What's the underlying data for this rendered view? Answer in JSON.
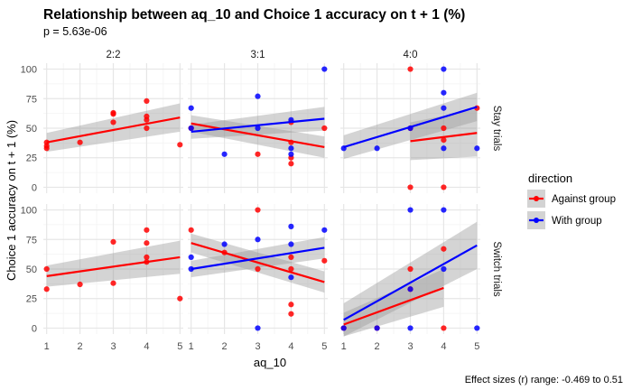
{
  "chart_data": {
    "type": "scatter",
    "title": "Relationship between aq_10 and Choice 1 accuracy on t + 1 (%)",
    "subtitle": "p = 5.63e-06",
    "caption": "Effect sizes (r) range: -0.469 to 0.51",
    "xlabel": "aq_10",
    "ylabel": "Choice 1 accuracy on t + 1 (%)",
    "xlim": [
      0.9,
      5.1
    ],
    "ylim": [
      -5,
      105
    ],
    "x_ticks": [
      "1",
      "2",
      "3",
      "4",
      "5"
    ],
    "y_ticks": [
      "0",
      "25",
      "50",
      "75",
      "100"
    ],
    "grid": true,
    "legend": {
      "title": "direction",
      "position": "right",
      "entries": [
        {
          "label": "Against group",
          "color": "#ff0000"
        },
        {
          "label": "With group",
          "color": "#0000ff"
        }
      ]
    },
    "columns": [
      "2:2",
      "3:1",
      "4:0"
    ],
    "rows": [
      "Stay trials",
      "Switch trials"
    ],
    "panels": [
      {
        "col": 0,
        "row": 0,
        "series": [
          {
            "name": "Against group",
            "color": "#ff0000",
            "points": [
              [
                1,
                33
              ],
              [
                1,
                35
              ],
              [
                1,
                38
              ],
              [
                2,
                38
              ],
              [
                3,
                55
              ],
              [
                3,
                62
              ],
              [
                3,
                63
              ],
              [
                4,
                50
              ],
              [
                4,
                57
              ],
              [
                4,
                60
              ],
              [
                4,
                73
              ],
              [
                5,
                36
              ]
            ],
            "fit": [
              [
                1,
                38
              ],
              [
                5,
                59
              ]
            ],
            "band": [
              8,
              12
            ]
          }
        ]
      },
      {
        "col": 1,
        "row": 0,
        "series": [
          {
            "name": "Against group",
            "color": "#ff0000",
            "points": [
              [
                1,
                50
              ],
              [
                3,
                28
              ],
              [
                4,
                20
              ],
              [
                4,
                25
              ],
              [
                4,
                38
              ],
              [
                4,
                55
              ],
              [
                5,
                50
              ]
            ],
            "fit": [
              [
                1,
                54
              ],
              [
                5,
                34
              ]
            ],
            "band": [
              7,
              9
            ]
          },
          {
            "name": "With group",
            "color": "#0000ff",
            "points": [
              [
                1,
                67
              ],
              [
                1,
                50
              ],
              [
                2,
                28
              ],
              [
                3,
                77
              ],
              [
                3,
                50
              ],
              [
                4,
                28
              ],
              [
                4,
                57
              ],
              [
                4,
                33
              ],
              [
                5,
                100
              ]
            ],
            "fit": [
              [
                1,
                47
              ],
              [
                5,
                58
              ]
            ],
            "band": [
              6,
              10
            ]
          }
        ]
      },
      {
        "col": 2,
        "row": 0,
        "series": [
          {
            "name": "Against group",
            "color": "#ff0000",
            "points": [
              [
                3,
                100
              ],
              [
                3,
                50
              ],
              [
                3,
                0
              ],
              [
                4,
                0
              ],
              [
                4,
                50
              ],
              [
                4,
                40
              ],
              [
                5,
                67
              ]
            ],
            "fit": [
              [
                3,
                39
              ],
              [
                5,
                46
              ]
            ],
            "band": [
              16,
              20
            ]
          },
          {
            "name": "With group",
            "color": "#0000ff",
            "points": [
              [
                1,
                33
              ],
              [
                2,
                33
              ],
              [
                3,
                50
              ],
              [
                4,
                100
              ],
              [
                4,
                80
              ],
              [
                4,
                67
              ],
              [
                4,
                33
              ],
              [
                5,
                33
              ]
            ],
            "fit": [
              [
                1,
                34
              ],
              [
                5,
                68
              ]
            ],
            "band": [
              10,
              12
            ]
          }
        ]
      },
      {
        "col": 0,
        "row": 1,
        "series": [
          {
            "name": "Against group",
            "color": "#ff0000",
            "points": [
              [
                1,
                50
              ],
              [
                1,
                33
              ],
              [
                2,
                37
              ],
              [
                3,
                73
              ],
              [
                3,
                38
              ],
              [
                4,
                83
              ],
              [
                4,
                72
              ],
              [
                4,
                60
              ],
              [
                4,
                56
              ],
              [
                5,
                25
              ]
            ],
            "fit": [
              [
                1,
                44
              ],
              [
                5,
                60
              ]
            ],
            "band": [
              9,
              14
            ]
          }
        ]
      },
      {
        "col": 1,
        "row": 1,
        "series": [
          {
            "name": "Against group",
            "color": "#ff0000",
            "points": [
              [
                1,
                83
              ],
              [
                2,
                64
              ],
              [
                3,
                100
              ],
              [
                3,
                50
              ],
              [
                4,
                60
              ],
              [
                4,
                20
              ],
              [
                4,
                12
              ],
              [
                4,
                50
              ],
              [
                5,
                57
              ]
            ],
            "fit": [
              [
                1,
                72
              ],
              [
                5,
                39
              ]
            ],
            "band": [
              8,
              9
            ]
          },
          {
            "name": "With group",
            "color": "#0000ff",
            "points": [
              [
                1,
                60
              ],
              [
                1,
                50
              ],
              [
                2,
                71
              ],
              [
                3,
                75
              ],
              [
                3,
                0
              ],
              [
                4,
                86
              ],
              [
                4,
                71
              ],
              [
                4,
                43
              ],
              [
                5,
                83
              ]
            ],
            "fit": [
              [
                1,
                50
              ],
              [
                5,
                68
              ]
            ],
            "band": [
              7,
              9
            ]
          }
        ]
      },
      {
        "col": 2,
        "row": 1,
        "series": [
          {
            "name": "Against group",
            "color": "#ff0000",
            "points": [
              [
                1,
                0
              ],
              [
                2,
                0
              ],
              [
                3,
                50
              ],
              [
                3,
                33
              ],
              [
                4,
                67
              ],
              [
                4,
                0
              ]
            ],
            "fit": [
              [
                1,
                3
              ],
              [
                4,
                34
              ]
            ],
            "band": [
              10,
              16
            ]
          },
          {
            "name": "With group",
            "color": "#0000ff",
            "points": [
              [
                1,
                0
              ],
              [
                2,
                0
              ],
              [
                3,
                100
              ],
              [
                3,
                0
              ],
              [
                3,
                33
              ],
              [
                4,
                100
              ],
              [
                4,
                50
              ],
              [
                5,
                0
              ]
            ],
            "fit": [
              [
                1,
                7
              ],
              [
                5,
                70
              ]
            ],
            "band": [
              14,
              20
            ]
          }
        ]
      }
    ]
  }
}
